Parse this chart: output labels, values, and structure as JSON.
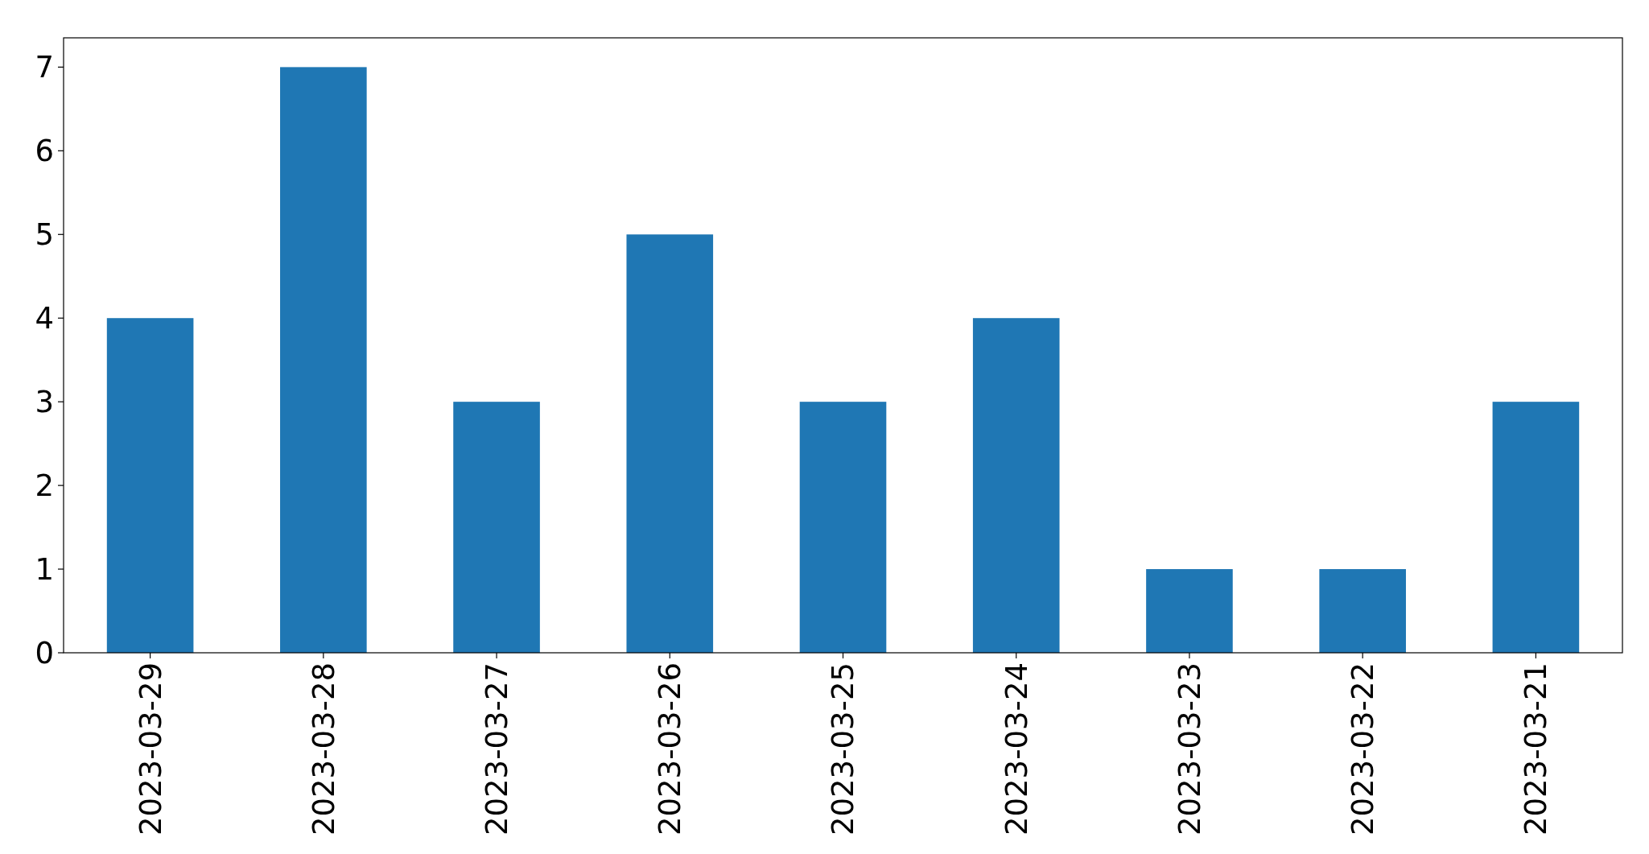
{
  "chart_data": {
    "type": "bar",
    "categories": [
      "2023-03-29",
      "2023-03-28",
      "2023-03-27",
      "2023-03-26",
      "2023-03-25",
      "2023-03-24",
      "2023-03-23",
      "2023-03-22",
      "2023-03-21"
    ],
    "values": [
      4,
      7,
      3,
      5,
      3,
      4,
      1,
      1,
      3
    ],
    "color": "#1f77b4",
    "ylim": [
      0,
      7.35
    ],
    "yticks": [
      0,
      1,
      2,
      3,
      4,
      5,
      6,
      7
    ],
    "grid": false
  }
}
